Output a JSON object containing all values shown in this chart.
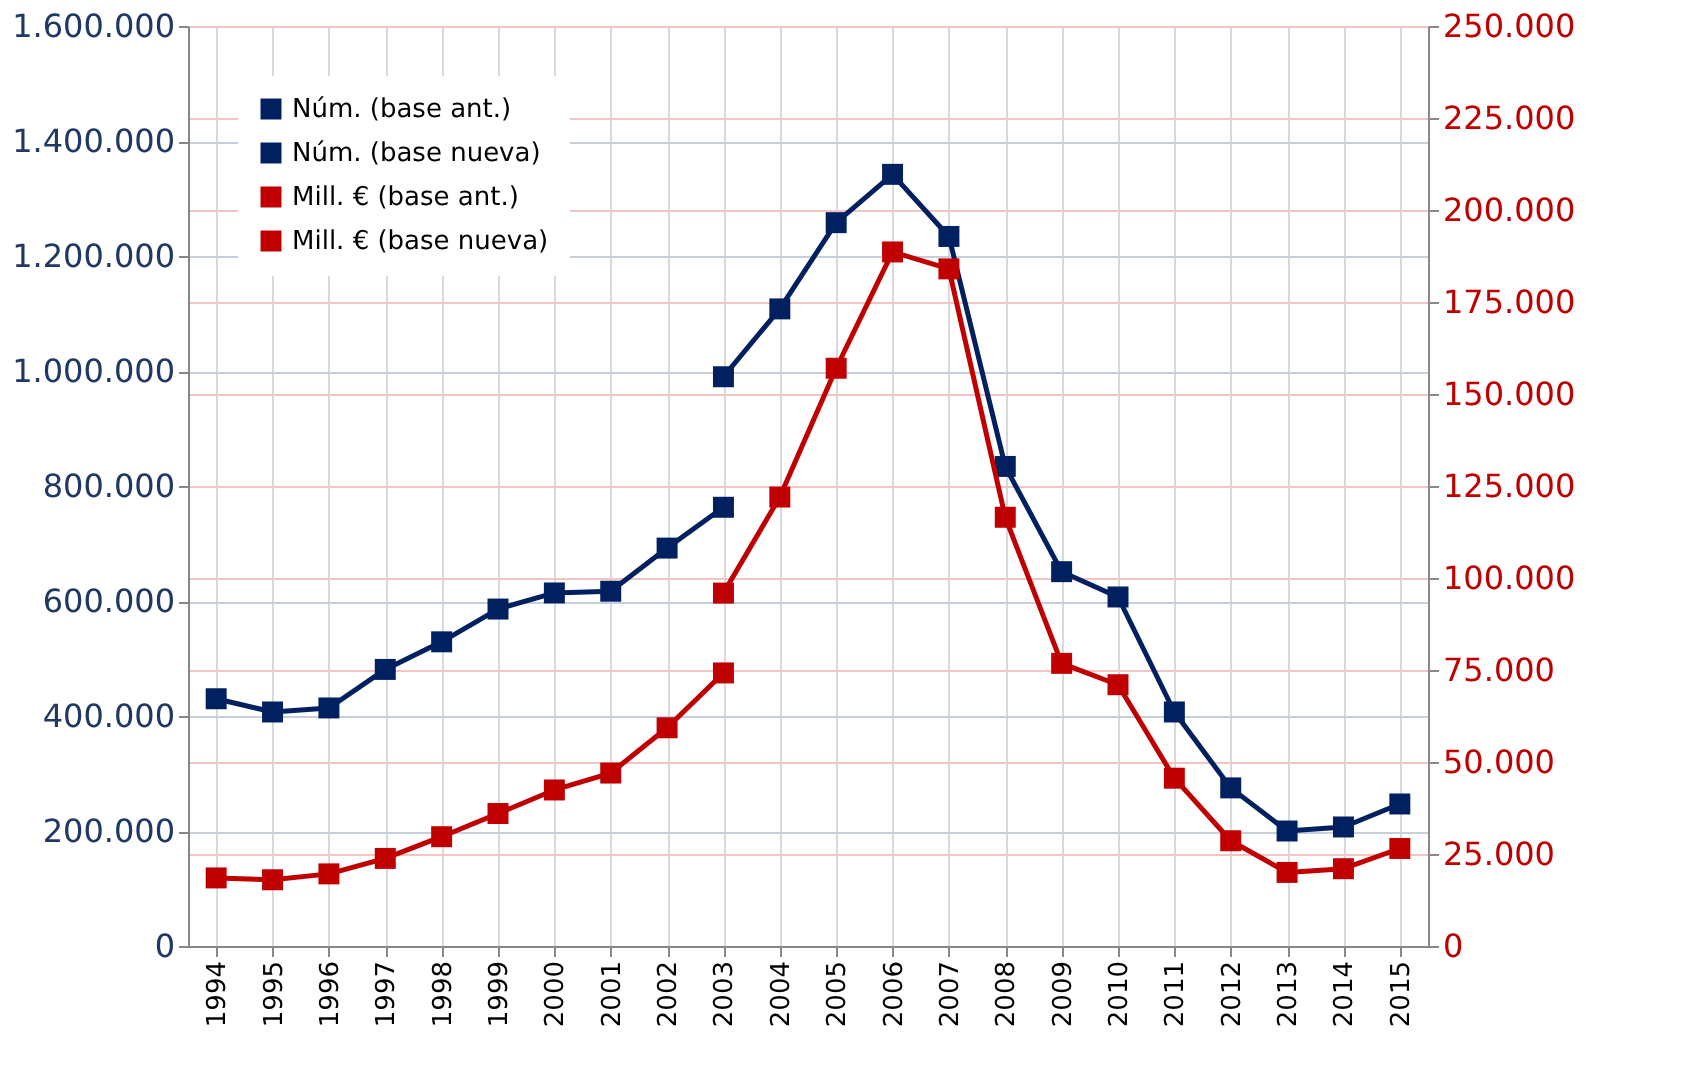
{
  "chart_data": {
    "type": "line",
    "categories": [
      "1994",
      "1995",
      "1996",
      "1997",
      "1998",
      "1999",
      "2000",
      "2001",
      "2002",
      "2003",
      "2004",
      "2005",
      "2006",
      "2007",
      "2008",
      "2009",
      "2010",
      "2011",
      "2012",
      "2013",
      "2014",
      "2015"
    ],
    "series": [
      {
        "name": "Núm. (base ant.)",
        "color": "#002060",
        "values": [
          430000,
          407000,
          414000,
          481000,
          529000,
          586000,
          614000,
          617000,
          692000,
          763000,
          null,
          null,
          null,
          null,
          null,
          null,
          null,
          null,
          null,
          null,
          null,
          null
        ]
      },
      {
        "name": "Núm. (base nueva)",
        "color": "#002060",
        "values": [
          null,
          null,
          null,
          null,
          null,
          null,
          null,
          null,
          null,
          990000,
          1108000,
          1258000,
          1342000,
          1234000,
          834000,
          651000,
          607000,
          407000,
          275000,
          200000,
          207000,
          247000
        ]
      },
      {
        "name": "Mill. € (base ant.)",
        "color": "#c00000",
        "axis": "y2",
        "values": [
          18500,
          18000,
          19600,
          23800,
          29700,
          36000,
          42400,
          47000,
          59300,
          74200,
          null,
          null,
          null,
          null,
          null,
          null,
          null,
          null,
          null,
          null,
          null,
          null
        ]
      },
      {
        "name": "Mill. € (base nueva)",
        "color": "#c00000",
        "axis": "y2",
        "values": [
          null,
          null,
          null,
          null,
          null,
          null,
          null,
          null,
          null,
          95900,
          122000,
          157000,
          188600,
          184000,
          116500,
          76800,
          71000,
          45600,
          28600,
          20000,
          21000,
          26500
        ]
      }
    ],
    "ylim": [
      0,
      1600000
    ],
    "yticks": [
      {
        "value": 0,
        "label": "0"
      },
      {
        "value": 200000,
        "label": "200.000"
      },
      {
        "value": 400000,
        "label": "400.000"
      },
      {
        "value": 600000,
        "label": "600.000"
      },
      {
        "value": 800000,
        "label": "800.000"
      },
      {
        "value": 1000000,
        "label": "1.000.000"
      },
      {
        "value": 1200000,
        "label": "1.200.000"
      },
      {
        "value": 1400000,
        "label": "1.400.000"
      },
      {
        "value": 1600000,
        "label": "1.600.000"
      }
    ],
    "y2lim": [
      0,
      250000
    ],
    "y2ticks": [
      {
        "value": 0,
        "label": "0"
      },
      {
        "value": 25000,
        "label": "25.000"
      },
      {
        "value": 50000,
        "label": "50.000"
      },
      {
        "value": 75000,
        "label": "75.000"
      },
      {
        "value": 100000,
        "label": "100.000"
      },
      {
        "value": 125000,
        "label": "125.000"
      },
      {
        "value": 150000,
        "label": "150.000"
      },
      {
        "value": 175000,
        "label": "175.000"
      },
      {
        "value": 200000,
        "label": "200.000"
      },
      {
        "value": 225000,
        "label": "225.000"
      },
      {
        "value": 250000,
        "label": "250.000"
      }
    ],
    "grid": true,
    "legend": "top left",
    "marker": "square",
    "line_style": "solid"
  }
}
